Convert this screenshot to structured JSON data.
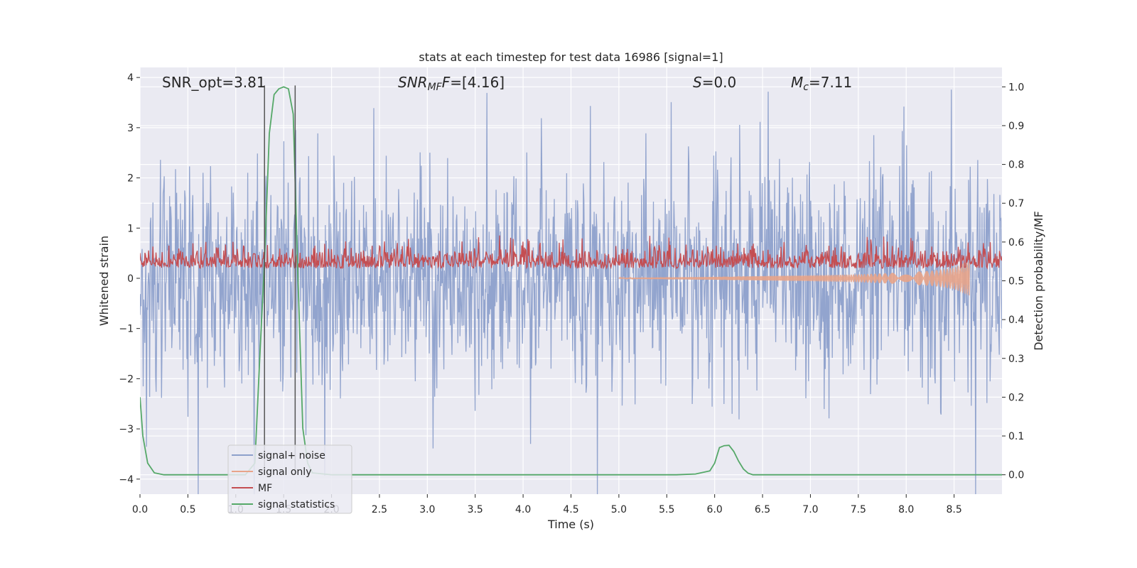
{
  "chart_data": {
    "type": "line",
    "title": "stats at each timestep for test data 16986 [signal=1]",
    "xlabel": "Time (s)",
    "ylabel": "Whitened strain",
    "ylabel_right": "Detection probability/MF",
    "xlim": [
      0.0,
      9.0
    ],
    "ylim": [
      -4.3,
      4.2
    ],
    "ylim_right": [
      -0.05,
      1.05
    ],
    "x_ticks": [
      "0.0",
      "0.5",
      "1.0",
      "1.5",
      "2.0",
      "2.5",
      "3.0",
      "3.5",
      "4.0",
      "4.5",
      "5.0",
      "5.5",
      "6.0",
      "6.5",
      "7.0",
      "7.5",
      "8.0",
      "8.5"
    ],
    "y_ticks": [
      "4",
      "3",
      "2",
      "1",
      "0",
      "−1",
      "−2",
      "−3",
      "−4"
    ],
    "y_ticks_right": [
      "1.0",
      "0.9",
      "0.8",
      "0.7",
      "0.6",
      "0.5",
      "0.4",
      "0.3",
      "0.2",
      "0.1",
      "0.0"
    ],
    "grid": true,
    "legend_position": "lower-left",
    "annotations": {
      "snr_opt": "SNR_opt=3.81",
      "snr_mf_prefix": "SNR",
      "snr_mf_sub": "MF",
      "snr_mf_value": "=[4.16]",
      "s_prefix": "S",
      "s_value": "=0.0",
      "mc_prefix": "M",
      "mc_sub": "c",
      "mc_value": "=7.11"
    },
    "vertical_markers": [
      1.3,
      1.62
    ],
    "series": [
      {
        "name": "signal+ noise",
        "color": "#8da0cb",
        "axis": "left",
        "description_range": [
          -4.0,
          4.0
        ]
      },
      {
        "name": "signal only",
        "color": "#e8a48a",
        "axis": "left",
        "envelope_x": [
          5.0,
          6.0,
          7.0,
          7.5,
          8.0,
          8.3,
          8.5,
          8.66
        ],
        "envelope_amp": [
          0.01,
          0.03,
          0.06,
          0.08,
          0.12,
          0.16,
          0.22,
          0.35
        ]
      },
      {
        "name": "MF",
        "color": "#c44e52",
        "axis": "left",
        "baseline": 0.25,
        "range": [
          0.0,
          1.0
        ]
      },
      {
        "name": "signal statistics",
        "color": "#55a868",
        "axis": "right",
        "x": [
          0.0,
          0.03,
          0.08,
          0.15,
          0.25,
          0.4,
          1.1,
          1.2,
          1.25,
          1.3,
          1.35,
          1.4,
          1.45,
          1.5,
          1.55,
          1.6,
          1.65,
          1.7,
          1.75,
          1.8,
          2.0,
          5.6,
          5.8,
          5.95,
          6.0,
          6.05,
          6.1,
          6.15,
          6.2,
          6.25,
          6.3,
          6.35,
          6.4,
          6.5,
          9.0
        ],
        "y": [
          0.2,
          0.1,
          0.03,
          0.005,
          0.0,
          0.0,
          0.0,
          0.03,
          0.3,
          0.55,
          0.88,
          0.98,
          0.995,
          1.0,
          0.995,
          0.93,
          0.5,
          0.12,
          0.03,
          0.005,
          0.0,
          0.0,
          0.002,
          0.01,
          0.03,
          0.07,
          0.075,
          0.076,
          0.06,
          0.035,
          0.015,
          0.004,
          0.0,
          0.0,
          0.0
        ]
      }
    ]
  }
}
